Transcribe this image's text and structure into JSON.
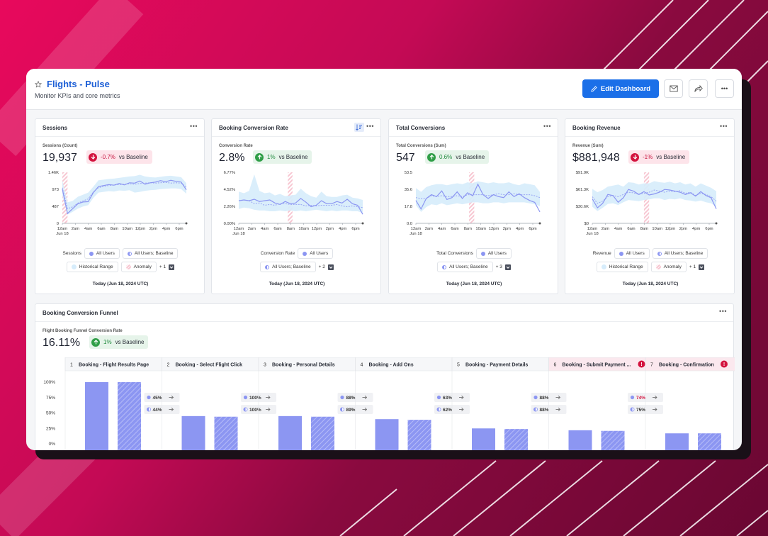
{
  "header": {
    "title": "Flights - Pulse",
    "subtitle": "Monitor KPIs and core metrics",
    "edit_label": "Edit Dashboard",
    "dots": "•••"
  },
  "cards": [
    {
      "title": "Sessions",
      "metric_label": "Sessions (Count)",
      "value": "19,937",
      "delta": "-0.7%",
      "delta_dir": "neg",
      "vs": "vs Baseline",
      "legend_name": "Sessions",
      "chip1": "All Users",
      "chip2": "All Users; Baseline",
      "chip3": "Historical Range",
      "chip4": "Anomaly",
      "more": "+ 1",
      "footer": "Today (Jun 18, 2024 UTC)"
    },
    {
      "title": "Booking Conversion Rate",
      "metric_label": "Conversion Rate",
      "value": "2.8%",
      "delta": "1%",
      "delta_dir": "pos",
      "vs": "vs Baseline",
      "legend_name": "Conversion Rate",
      "chip1": "All Users",
      "chip2": "All Users; Baseline",
      "more": "+ 2",
      "footer": "Today (Jun 18, 2024 UTC)"
    },
    {
      "title": "Total Conversions",
      "metric_label": "Total Conversions (Sum)",
      "value": "547",
      "delta": "0.6%",
      "delta_dir": "pos",
      "vs": "vs Baseline",
      "legend_name": "Total Conversions",
      "chip1": "All Users",
      "chip2": "All Users; Baseline",
      "more": "+ 3",
      "footer": "Today (Jun 18, 2024 UTC)"
    },
    {
      "title": "Booking Revenue",
      "metric_label": "Revenue (Sum)",
      "value": "$881,948",
      "delta": "-1%",
      "delta_dir": "neg",
      "vs": "vs Baseline",
      "legend_name": "Revenue",
      "chip1": "All Users",
      "chip2": "All Users; Baseline",
      "chip3": "Historical Range",
      "chip4": "Anomaly",
      "more": "+ 1",
      "footer": "Today (Jun 18, 2024 UTC)"
    }
  ],
  "funnel": {
    "title": "Booking Conversion Funnel",
    "metric_label": "Flight Booking Funnel Conversion Rate",
    "value": "16.11%",
    "delta": "1%",
    "vs": "vs Baseline"
  },
  "colors": {
    "accent": "#1b6fe8",
    "series": "#8c96f2",
    "range": "#d6ecfb",
    "anomaly": "#f7c7d2",
    "negative": "#d3133e",
    "positive": "#2f9e47"
  },
  "chart_data": [
    {
      "type": "line",
      "title": "Sessions",
      "ylabel": "Sessions (Count)",
      "x_ticks": [
        "12am",
        "2am",
        "4am",
        "6am",
        "8am",
        "10am",
        "12pm",
        "2pm",
        "4pm",
        "6pm"
      ],
      "x_sublabel": "Jun 18",
      "y_ticks": [
        "0",
        "487",
        "973",
        "1.46K"
      ],
      "ylim": [
        0,
        1460
      ],
      "series": [
        {
          "name": "All Users",
          "values": [
            980,
            280,
            420,
            560,
            610,
            620,
            880,
            1050,
            1080,
            1110,
            1090,
            1140,
            1100,
            1160,
            1150,
            1210,
            1120,
            1160,
            1180,
            1220,
            1190,
            1230,
            1200,
            1180,
            960
          ]
        },
        {
          "name": "All Users; Baseline",
          "values": [
            1020,
            420,
            470,
            580,
            640,
            700,
            900,
            1020,
            1060,
            1080,
            1100,
            1110,
            1120,
            1130,
            1120,
            1140,
            1150,
            1160,
            1150,
            1160,
            1170,
            1150,
            1160,
            1150,
            1040
          ]
        }
      ],
      "range_low": [
        800,
        250,
        330,
        420,
        480,
        520,
        730,
        880,
        900,
        920,
        910,
        940,
        930,
        950,
        880,
        900,
        930,
        950,
        960,
        980,
        990,
        1000,
        1000,
        980,
        850
      ],
      "range_high": [
        1230,
        600,
        640,
        760,
        820,
        880,
        1050,
        1230,
        1250,
        1270,
        1280,
        1300,
        1320,
        1340,
        1350,
        1390,
        1340,
        1320,
        1310,
        1330,
        1350,
        1360,
        1340,
        1320,
        1150
      ],
      "anomaly_x": [
        0,
        1
      ]
    },
    {
      "type": "line",
      "title": "Booking Conversion Rate",
      "ylabel": "Conversion Rate",
      "x_ticks": [
        "12am",
        "2am",
        "4am",
        "6am",
        "8am",
        "10am",
        "12pm",
        "2pm",
        "4pm",
        "6pm"
      ],
      "x_sublabel": "Jun 18",
      "y_ticks": [
        "0.00%",
        "2.26%",
        "4.52%",
        "6.77%"
      ],
      "ylim": [
        0,
        6.77
      ],
      "series": [
        {
          "name": "All Users",
          "values": [
            3.0,
            3.1,
            3.0,
            3.2,
            2.9,
            3.0,
            3.1,
            2.7,
            2.5,
            2.9,
            2.6,
            2.7,
            3.3,
            2.8,
            2.2,
            2.4,
            3.0,
            2.6,
            2.6,
            2.9,
            2.7,
            3.2,
            2.6,
            2.4,
            1.2
          ]
        },
        {
          "name": "All Users; Baseline",
          "values": [
            3.0,
            3.1,
            3.0,
            2.6,
            2.7,
            2.4,
            2.5,
            2.4,
            2.6,
            2.6,
            2.5,
            2.5,
            2.5,
            2.3,
            2.4,
            2.3,
            2.4,
            2.4,
            2.4,
            2.5,
            2.3,
            2.2,
            2.3,
            2.2,
            2.1
          ]
        }
      ],
      "range_low": [
        1.9,
        2.1,
        2.0,
        1.8,
        1.7,
        1.7,
        1.6,
        1.6,
        1.7,
        1.6,
        1.7,
        1.6,
        1.7,
        1.6,
        1.7,
        1.8,
        1.7,
        1.6,
        1.7,
        1.6,
        1.7,
        1.7,
        1.6,
        1.6,
        1.4
      ],
      "range_high": [
        4.2,
        4.0,
        4.3,
        6.5,
        4.3,
        4.0,
        4.1,
        3.7,
        3.9,
        3.6,
        3.7,
        3.8,
        4.6,
        4.0,
        3.6,
        3.4,
        4.2,
        3.6,
        3.5,
        3.5,
        3.7,
        3.8,
        3.4,
        3.3,
        3.1
      ],
      "anomaly_x": [
        9.5,
        10.4
      ]
    },
    {
      "type": "line",
      "title": "Total Conversions",
      "ylabel": "Total Conversions (Sum)",
      "x_ticks": [
        "12am",
        "2am",
        "4am",
        "6am",
        "8am",
        "10am",
        "12pm",
        "2pm",
        "4pm",
        "6pm"
      ],
      "x_sublabel": "Jun 18",
      "y_ticks": [
        "0.0",
        "17.8",
        "35.6",
        "53.5"
      ],
      "ylim": [
        0,
        53.5
      ],
      "series": [
        {
          "name": "All Users",
          "values": [
            24,
            15,
            26,
            30,
            28,
            34,
            25,
            27,
            33,
            26,
            32,
            29,
            41,
            30,
            26,
            30,
            28,
            27,
            33,
            28,
            31,
            27,
            24,
            22,
            12
          ]
        },
        {
          "name": "All Users; Baseline",
          "values": [
            27,
            26,
            26,
            29,
            28,
            29,
            28,
            28,
            29,
            28,
            30,
            30,
            30,
            30,
            29,
            30,
            31,
            30,
            30,
            31,
            30,
            30,
            30,
            29,
            27
          ]
        }
      ],
      "range_low": [
        19,
        12,
        17,
        20,
        19,
        21,
        19,
        20,
        21,
        20,
        21,
        22,
        22,
        21,
        21,
        22,
        22,
        21,
        22,
        22,
        22,
        22,
        21,
        20,
        18
      ],
      "range_high": [
        37,
        33,
        38,
        40,
        41,
        41,
        40,
        41,
        42,
        41,
        43,
        42,
        44,
        43,
        42,
        43,
        42,
        42,
        43,
        41,
        40,
        42,
        41,
        40,
        33
      ],
      "anomaly_x": [
        10.3,
        11.3
      ]
    },
    {
      "type": "line",
      "title": "Booking Revenue",
      "ylabel": "Revenue (Sum)",
      "x_ticks": [
        "12am",
        "2am",
        "4am",
        "6am",
        "8am",
        "10am",
        "12pm",
        "2pm",
        "4pm",
        "6pm"
      ],
      "x_sublabel": "Jun 18",
      "y_ticks": [
        "$0",
        "$30.6K",
        "$61.3K",
        "$91.9K"
      ],
      "ylim": [
        0,
        91900
      ],
      "series": [
        {
          "name": "All Users",
          "values": [
            44000,
            28000,
            36000,
            52000,
            50000,
            38000,
            46000,
            61000,
            58000,
            52000,
            57000,
            51000,
            53000,
            56000,
            61000,
            60000,
            58000,
            56000,
            52000,
            55000,
            49000,
            57000,
            50000,
            46000,
            26000
          ]
        },
        {
          "name": "All Users; Baseline",
          "values": [
            48000,
            36000,
            40000,
            48000,
            50000,
            48000,
            52000,
            56000,
            55000,
            52000,
            54000,
            56000,
            60000,
            58000,
            56000,
            58000,
            57000,
            59000,
            54000,
            56000,
            50000,
            54000,
            52000,
            48000,
            40000
          ]
        }
      ],
      "range_low": [
        30000,
        22000,
        28000,
        35000,
        36000,
        33000,
        38000,
        42000,
        41000,
        40000,
        42000,
        43000,
        45000,
        45000,
        42000,
        44000,
        43000,
        45000,
        42000,
        41000,
        39000,
        41000,
        38000,
        36000,
        30000
      ],
      "range_high": [
        62000,
        56000,
        60000,
        66000,
        68000,
        70000,
        66000,
        74000,
        73000,
        70000,
        72000,
        72000,
        76000,
        74000,
        73000,
        75000,
        72000,
        74000,
        70000,
        72000,
        66000,
        72000,
        68000,
        64000,
        58000
      ],
      "anomaly_x": [
        10,
        11
      ]
    },
    {
      "type": "bar",
      "title": "Booking Conversion Funnel",
      "y_ticks": [
        "0%",
        "25%",
        "50%",
        "75%",
        "100%"
      ],
      "ylim": [
        0,
        100
      ],
      "steps": [
        {
          "num": "1",
          "name": "Booking - Flight Results Page",
          "value": 100,
          "baseline": 100,
          "conv": "45%",
          "conv_base": "44%",
          "alert": false
        },
        {
          "num": "2",
          "name": "Booking - Select Flight Click",
          "value": 45,
          "baseline": 44,
          "conv": "100%",
          "conv_base": "100%",
          "alert": false
        },
        {
          "num": "3",
          "name": "Booking - Personal Details",
          "value": 45,
          "baseline": 44,
          "conv": "88%",
          "conv_base": "89%",
          "alert": false
        },
        {
          "num": "4",
          "name": "Booking - Add Ons",
          "value": 40,
          "baseline": 39,
          "conv": "63%",
          "conv_base": "62%",
          "alert": false
        },
        {
          "num": "5",
          "name": "Booking - Payment Details",
          "value": 25,
          "baseline": 24,
          "conv": "88%",
          "conv_base": "88%",
          "alert": false
        },
        {
          "num": "6",
          "name": "Booking - Submit Payment ...",
          "value": 22,
          "baseline": 21,
          "conv": "74%",
          "conv_base": "75%",
          "alert": true
        },
        {
          "num": "7",
          "name": "Booking - Confirmation",
          "value": 17,
          "baseline": 17,
          "conv": "",
          "conv_base": "",
          "alert": true
        }
      ]
    }
  ]
}
